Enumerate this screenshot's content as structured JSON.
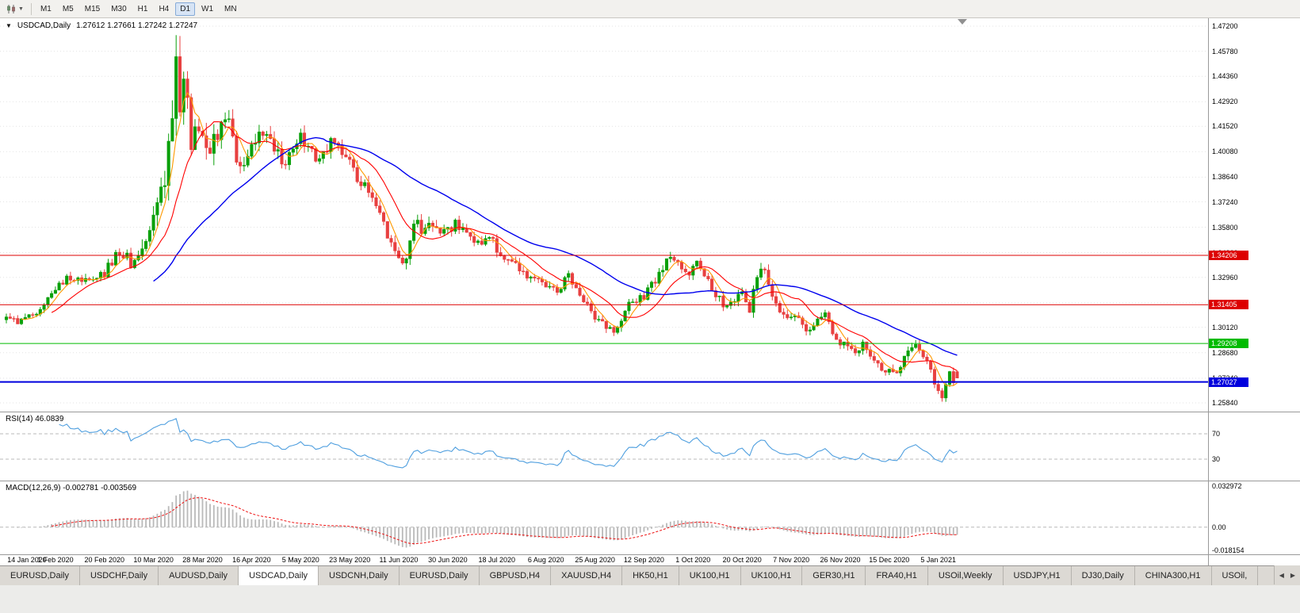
{
  "toolbar": {
    "chart_type_button": {
      "icon": "candlestick-chart-icon"
    },
    "timeframes": [
      {
        "label": "M1",
        "active": false
      },
      {
        "label": "M5",
        "active": false
      },
      {
        "label": "M15",
        "active": false
      },
      {
        "label": "M30",
        "active": false
      },
      {
        "label": "H1",
        "active": false
      },
      {
        "label": "H4",
        "active": false
      },
      {
        "label": "D1",
        "active": true
      },
      {
        "label": "W1",
        "active": false
      },
      {
        "label": "MN",
        "active": false
      }
    ]
  },
  "chart": {
    "title": {
      "collapse_arrow": "▼",
      "symbol": "USDCAD,Daily",
      "ohlc": "1.27612 1.27661 1.27242 1.27247"
    },
    "price_axis_ticks": [
      "1.47200",
      "1.45780",
      "1.44360",
      "1.42920",
      "1.41520",
      "1.40080",
      "1.38640",
      "1.37240",
      "1.35800",
      "1.34360",
      "1.32960",
      "1.31520",
      "1.30120",
      "1.28680",
      "1.27240",
      "1.25840"
    ],
    "price_levels": [
      {
        "label": "1.34206",
        "value": 1.34206,
        "color": "#dd0000",
        "line_width": 1
      },
      {
        "label": "1.31405",
        "value": 1.31405,
        "color": "#dd0000",
        "line_width": 1
      },
      {
        "label": "1.29208",
        "value": 1.29208,
        "color": "#00bb00",
        "line_width": 1
      },
      {
        "label": "1.27027",
        "value": 1.27027,
        "color": "#0000dd",
        "line_width": 2
      }
    ]
  },
  "rsi_panel": {
    "label": "RSI(14) 46.0839",
    "levels": [
      {
        "label": "70",
        "value": 70
      },
      {
        "label": "30",
        "value": 30
      }
    ],
    "line_color": "#4f9fdf"
  },
  "macd_panel": {
    "label": "MACD(12,26,9) -0.002781 -0.003569",
    "scale_max_label": "0.032972",
    "zero_label": "0.00",
    "scale_min_label": "-0.018154",
    "scale_max": 0.032972,
    "scale_min": -0.018154,
    "histogram_color": "#b9b9b9",
    "signal_color": "#ee1111"
  },
  "date_axis": {
    "labels": [
      "14 Jan 2020",
      "1 Feb 2020",
      "20 Feb 2020",
      "10 Mar 2020",
      "28 Mar 2020",
      "16 Apr 2020",
      "5 May 2020",
      "23 May 2020",
      "11 Jun 2020",
      "30 Jun 2020",
      "18 Jul 2020",
      "6 Aug 2020",
      "25 Aug 2020",
      "12 Sep 2020",
      "1 Oct 2020",
      "20 Oct 2020",
      "7 Nov 2020",
      "26 Nov 2020",
      "15 Dec 2020",
      "5 Jan 2021"
    ],
    "candles_per_tick": 13
  },
  "tabs": [
    {
      "label": "EURUSD,Daily",
      "active": false
    },
    {
      "label": "USDCHF,Daily",
      "active": false
    },
    {
      "label": "AUDUSD,Daily",
      "active": false
    },
    {
      "label": "USDCAD,Daily",
      "active": true
    },
    {
      "label": "USDCNH,Daily",
      "active": false
    },
    {
      "label": "EURUSD,Daily",
      "active": false
    },
    {
      "label": "GBPUSD,H4",
      "active": false
    },
    {
      "label": "XAUUSD,H4",
      "active": false
    },
    {
      "label": "HK50,H1",
      "active": false
    },
    {
      "label": "UK100,H1",
      "active": false
    },
    {
      "label": "UK100,H1",
      "active": false
    },
    {
      "label": "GER30,H1",
      "active": false
    },
    {
      "label": "FRA40,H1",
      "active": false
    },
    {
      "label": "USOil,Weekly",
      "active": false
    },
    {
      "label": "USDJPY,H1",
      "active": false
    },
    {
      "label": "DJ30,Daily",
      "active": false
    },
    {
      "label": "CHINA300,H1",
      "active": false
    },
    {
      "label": "USOil,",
      "active": false
    }
  ],
  "colors": {
    "up_candle": "#0aa00a",
    "down_candle": "#e84040",
    "ma_fast": "#ff9900",
    "ma_mid": "#ff0000",
    "ma_slow": "#0000ee",
    "grid": "#e3e3e3",
    "axis_text": "#000000",
    "panel_border": "#9a9a9a"
  },
  "chart_data": {
    "type": "candlestick",
    "symbol": "USDCAD",
    "period": "Daily",
    "num_candles": 253,
    "seed": 20210114,
    "axis_top": 1.472,
    "axis_bottom": 1.2584,
    "last_ohlc": {
      "open": 1.27612,
      "high": 1.27661,
      "low": 1.27242,
      "close": 1.27247
    },
    "extreme_high": {
      "index": 45,
      "price": 1.4669
    },
    "close_anchors": [
      [
        0,
        1.306
      ],
      [
        4,
        1.3045
      ],
      [
        8,
        1.3105
      ],
      [
        13,
        1.3235
      ],
      [
        17,
        1.33
      ],
      [
        21,
        1.327
      ],
      [
        26,
        1.332
      ],
      [
        30,
        1.3445
      ],
      [
        33,
        1.339
      ],
      [
        36,
        1.343
      ],
      [
        38,
        1.356
      ],
      [
        40,
        1.369
      ],
      [
        42,
        1.384
      ],
      [
        44,
        1.425
      ],
      [
        45,
        1.448
      ],
      [
        46,
        1.426
      ],
      [
        47,
        1.444
      ],
      [
        49,
        1.409
      ],
      [
        51,
        1.419
      ],
      [
        53,
        1.402
      ],
      [
        56,
        1.411
      ],
      [
        59,
        1.417
      ],
      [
        62,
        1.389
      ],
      [
        65,
        1.408
      ],
      [
        68,
        1.412
      ],
      [
        71,
        1.401
      ],
      [
        74,
        1.394
      ],
      [
        78,
        1.409
      ],
      [
        82,
        1.398
      ],
      [
        86,
        1.405
      ],
      [
        90,
        1.398
      ],
      [
        93,
        1.386
      ],
      [
        96,
        1.378
      ],
      [
        99,
        1.368
      ],
      [
        102,
        1.348
      ],
      [
        104,
        1.339
      ],
      [
        106,
        1.342
      ],
      [
        108,
        1.362
      ],
      [
        110,
        1.356
      ],
      [
        113,
        1.361
      ],
      [
        116,
        1.355
      ],
      [
        119,
        1.36
      ],
      [
        122,
        1.356
      ],
      [
        125,
        1.348
      ],
      [
        128,
        1.354
      ],
      [
        131,
        1.342
      ],
      [
        134,
        1.339
      ],
      [
        137,
        1.332
      ],
      [
        140,
        1.328
      ],
      [
        143,
        1.326
      ],
      [
        146,
        1.322
      ],
      [
        149,
        1.331
      ],
      [
        152,
        1.318
      ],
      [
        155,
        1.31
      ],
      [
        158,
        1.304
      ],
      [
        161,
        1.3
      ],
      [
        163,
        1.306
      ],
      [
        166,
        1.317
      ],
      [
        169,
        1.319
      ],
      [
        172,
        1.328
      ],
      [
        175,
        1.338
      ],
      [
        177,
        1.341
      ],
      [
        179,
        1.333
      ],
      [
        181,
        1.331
      ],
      [
        183,
        1.339
      ],
      [
        185,
        1.332
      ],
      [
        187,
        1.322
      ],
      [
        190,
        1.314
      ],
      [
        193,
        1.318
      ],
      [
        195,
        1.3215
      ],
      [
        197,
        1.312
      ],
      [
        199,
        1.331
      ],
      [
        201,
        1.333
      ],
      [
        203,
        1.32
      ],
      [
        205,
        1.312
      ],
      [
        207,
        1.307
      ],
      [
        209,
        1.31
      ],
      [
        211,
        1.302
      ],
      [
        213,
        1.298
      ],
      [
        215,
        1.306
      ],
      [
        217,
        1.309
      ],
      [
        219,
        1.298
      ],
      [
        221,
        1.293
      ],
      [
        223,
        1.29
      ],
      [
        225,
        1.287
      ],
      [
        227,
        1.292
      ],
      [
        229,
        1.284
      ],
      [
        231,
        1.28
      ],
      [
        233,
        1.277
      ],
      [
        235,
        1.275
      ],
      [
        237,
        1.279
      ],
      [
        239,
        1.289
      ],
      [
        241,
        1.292
      ],
      [
        243,
        1.285
      ],
      [
        245,
        1.276
      ],
      [
        246,
        1.27
      ],
      [
        247,
        1.267
      ],
      [
        248,
        1.263
      ],
      [
        249,
        1.27
      ],
      [
        250,
        1.276
      ],
      [
        251,
        1.27
      ],
      [
        252,
        1.2725
      ]
    ],
    "volatility_anchors": [
      [
        0,
        0.003
      ],
      [
        25,
        0.004
      ],
      [
        36,
        0.0085
      ],
      [
        42,
        0.015
      ],
      [
        46,
        0.017
      ],
      [
        52,
        0.011
      ],
      [
        60,
        0.0085
      ],
      [
        75,
        0.0065
      ],
      [
        95,
        0.006
      ],
      [
        110,
        0.0055
      ],
      [
        130,
        0.0045
      ],
      [
        160,
        0.0042
      ],
      [
        185,
        0.0045
      ],
      [
        200,
        0.005
      ],
      [
        220,
        0.004
      ],
      [
        252,
        0.0038
      ]
    ],
    "moving_averages": [
      {
        "period": 5,
        "color_key": "ma_fast"
      },
      {
        "period": 13,
        "color_key": "ma_mid"
      },
      {
        "period": 40,
        "color_key": "ma_slow"
      }
    ],
    "indicators": {
      "rsi_period": 14,
      "macd": [
        12,
        26,
        9
      ]
    }
  }
}
